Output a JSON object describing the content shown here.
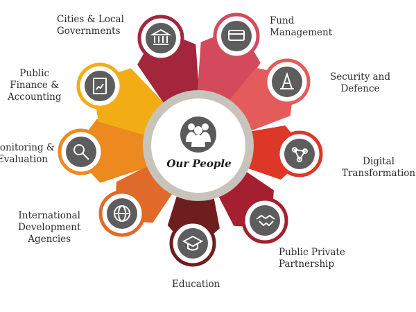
{
  "center": {
    "label": "Our People",
    "icon": "people-icon"
  },
  "segments": [
    {
      "id": "cities",
      "label": "Cities & Local\nGovernments",
      "color": "#a3263d",
      "icon": "government-building-icon"
    },
    {
      "id": "fund",
      "label": "Fund\nManagement",
      "color": "#d34a5d",
      "icon": "credit-card-hand-icon"
    },
    {
      "id": "security",
      "label": "Security and\nDefence",
      "color": "#e45b5b",
      "icon": "traffic-cone-icon"
    },
    {
      "id": "digital",
      "label": "Digital\nTransformation",
      "color": "#dc3727",
      "icon": "network-nodes-icon"
    },
    {
      "id": "ppp",
      "label": "Public Private\nPartnership",
      "color": "#a42030",
      "icon": "handshake-icon"
    },
    {
      "id": "education",
      "label": "Education",
      "color": "#6e1e1e",
      "icon": "graduation-cap-icon"
    },
    {
      "id": "ida",
      "label": "International\nDevelopment\nAgencies",
      "color": "#e06a2a",
      "icon": "globe-icon"
    },
    {
      "id": "me",
      "label": "Monitoring &\nEvaluation",
      "color": "#ec8a1f",
      "icon": "magnifier-icon"
    },
    {
      "id": "pfa",
      "label": "Public\nFinance &\nAccounting",
      "color": "#f2ad16",
      "icon": "finance-document-icon"
    }
  ]
}
